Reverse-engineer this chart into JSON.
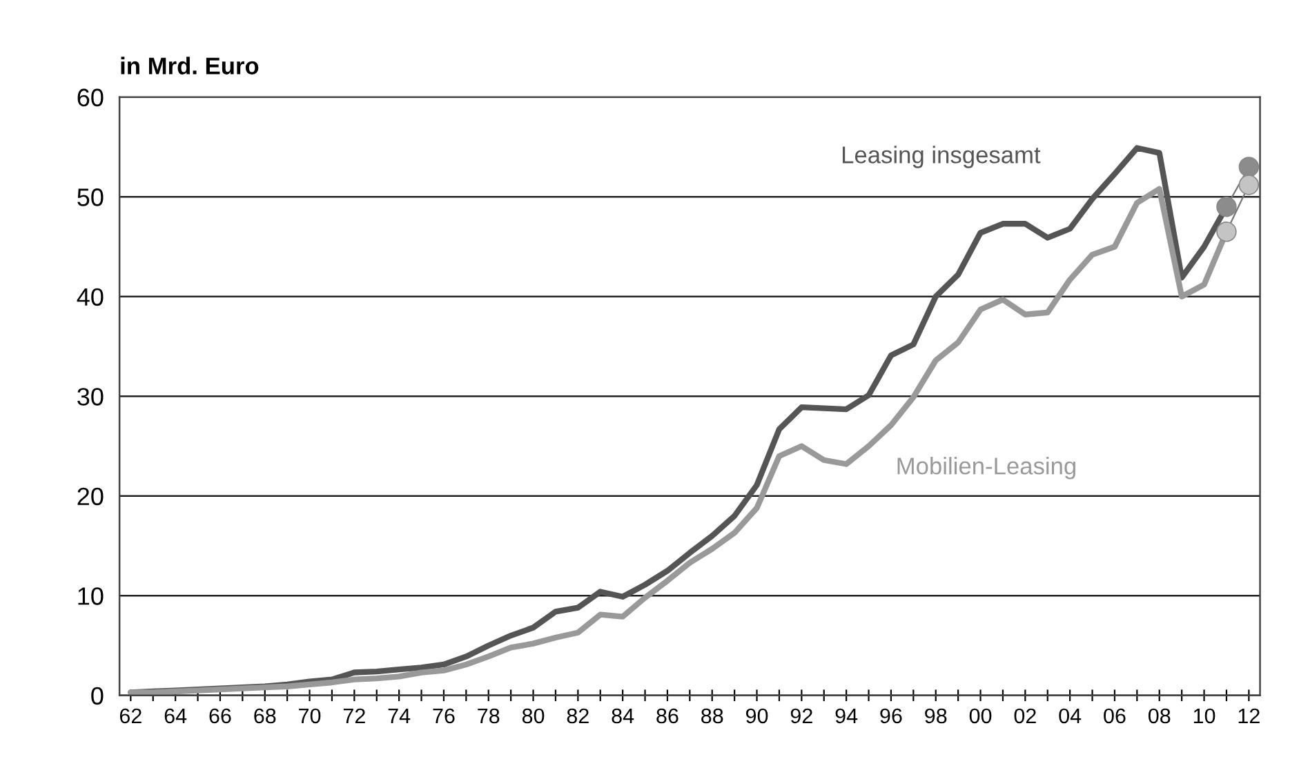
{
  "chart_data": {
    "type": "line",
    "ylabel": "in Mrd. Euro",
    "categories": [
      "62",
      null,
      "64",
      null,
      "66",
      null,
      "68",
      null,
      "70",
      null,
      "72",
      null,
      "74",
      null,
      "76",
      null,
      "78",
      null,
      "80",
      null,
      "82",
      null,
      "84",
      null,
      "86",
      null,
      "88",
      null,
      "90",
      null,
      "92",
      null,
      "94",
      null,
      "96",
      null,
      "98",
      null,
      "00",
      null,
      "02",
      null,
      "04",
      null,
      "06",
      null,
      "08",
      null,
      "10",
      null,
      "12"
    ],
    "series": [
      {
        "name": "Leasing insgesamt",
        "color": "#555555",
        "values": [
          0.3,
          0.4,
          0.5,
          0.6,
          0.7,
          0.8,
          0.9,
          1.1,
          1.4,
          1.6,
          2.3,
          2.4,
          2.6,
          2.8,
          3.1,
          3.9,
          5.0,
          6.0,
          6.8,
          8.4,
          8.8,
          10.4,
          9.9,
          11.1,
          12.5,
          14.3,
          16.0,
          18.0,
          21.1,
          26.7,
          28.9,
          28.8,
          28.7,
          30.1,
          34.1,
          35.2,
          40.0,
          42.2,
          46.4,
          47.3,
          47.3,
          45.9,
          46.8,
          49.8,
          52.3,
          54.9,
          54.4,
          41.9,
          45.0,
          49.0,
          null
        ]
      },
      {
        "name": "Mobilien-Leasing",
        "color": "#999999",
        "values": [
          0.3,
          0.3,
          0.4,
          0.5,
          0.6,
          0.7,
          0.8,
          0.9,
          1.1,
          1.3,
          1.6,
          1.7,
          1.9,
          2.3,
          2.5,
          3.1,
          3.9,
          4.8,
          5.2,
          5.8,
          6.3,
          8.1,
          7.9,
          9.8,
          11.5,
          13.3,
          14.7,
          16.3,
          18.8,
          24.0,
          25.0,
          23.6,
          23.2,
          25.0,
          27.1,
          29.9,
          33.6,
          35.4,
          38.7,
          39.7,
          38.2,
          38.4,
          41.7,
          44.2,
          45.0,
          49.4,
          50.8,
          40.0,
          41.2,
          46.5,
          null
        ]
      },
      {
        "color": "#8c8c8c",
        "marker": "circle",
        "line_style": "solid",
        "values": [
          null,
          null,
          null,
          null,
          null,
          null,
          null,
          null,
          null,
          null,
          null,
          null,
          null,
          null,
          null,
          null,
          null,
          null,
          null,
          null,
          null,
          null,
          null,
          null,
          null,
          null,
          null,
          null,
          null,
          null,
          null,
          null,
          null,
          null,
          null,
          null,
          null,
          null,
          null,
          null,
          null,
          null,
          null,
          null,
          null,
          null,
          null,
          null,
          null,
          49.0,
          53.0
        ]
      },
      {
        "color": "#c4c4c4",
        "marker": "circle",
        "line_style": "solid",
        "values": [
          null,
          null,
          null,
          null,
          null,
          null,
          null,
          null,
          null,
          null,
          null,
          null,
          null,
          null,
          null,
          null,
          null,
          null,
          null,
          null,
          null,
          null,
          null,
          null,
          null,
          null,
          null,
          null,
          null,
          null,
          null,
          null,
          null,
          null,
          null,
          null,
          null,
          null,
          null,
          null,
          null,
          null,
          null,
          null,
          null,
          null,
          null,
          null,
          null,
          46.5,
          51.2
        ]
      }
    ],
    "ylim": [
      0,
      60
    ],
    "yticks": [
      0,
      10,
      20,
      30,
      40,
      50,
      60
    ],
    "grid": "y",
    "legend": false
  }
}
